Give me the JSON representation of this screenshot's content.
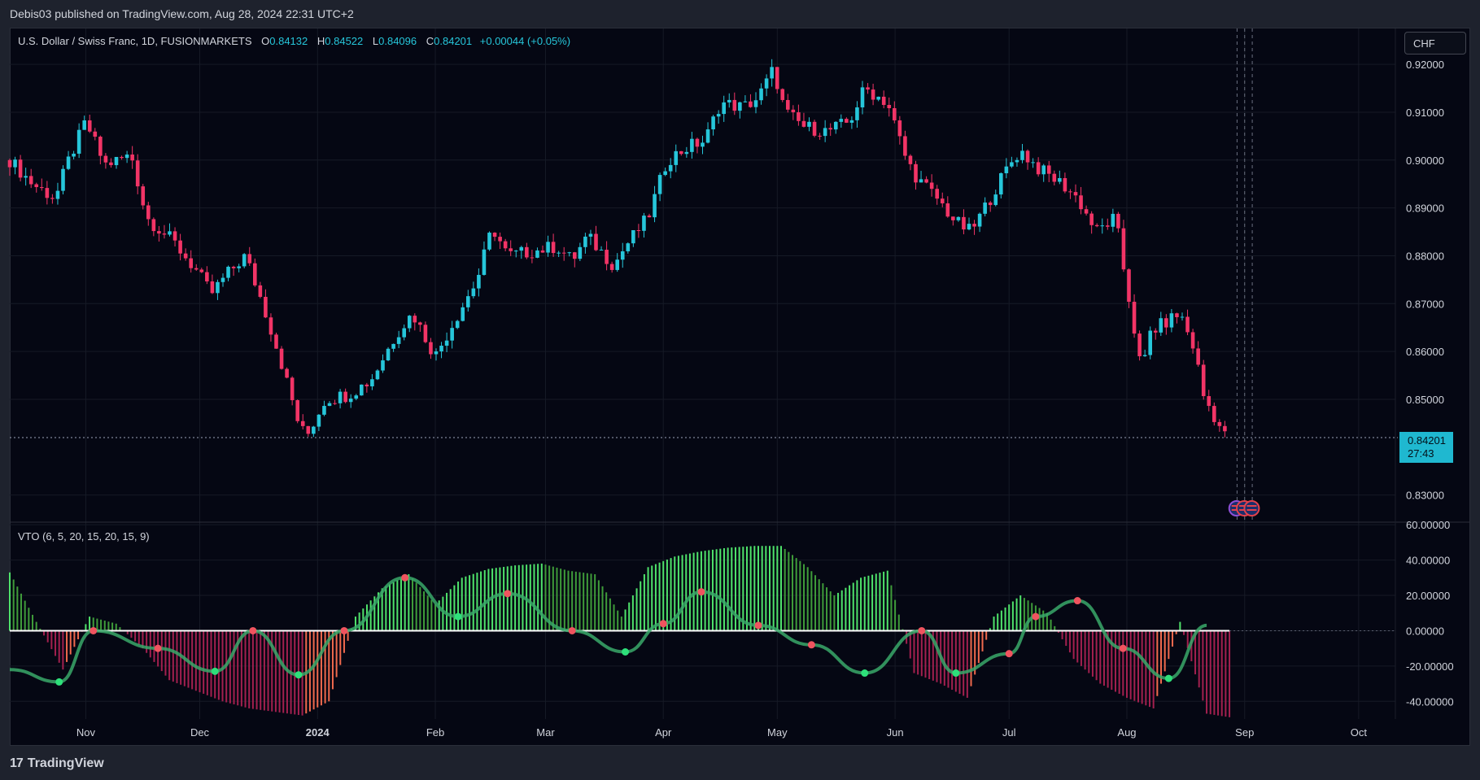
{
  "header": {
    "publish_line": "Debis03 published on TradingView.com, Aug 28, 2024 22:31 UTC+2"
  },
  "symbol": {
    "title": "U.S. Dollar / Swiss Franc, 1D, FUSIONMARKETS",
    "o_label": "O",
    "o_value": "0.84132",
    "h_label": "H",
    "h_value": "0.84522",
    "l_label": "L",
    "l_value": "0.84096",
    "c_label": "C",
    "c_value": "0.84201",
    "change": "+0.00044 (+0.05%)"
  },
  "currency_button": "CHF",
  "last_price": {
    "price": "0.84201",
    "countdown": "27:43"
  },
  "indicator": {
    "label": "VTO (6, 5, 20, 15, 20, 15, 9)"
  },
  "footer": {
    "brand": "TradingView",
    "logo": "17"
  },
  "colors": {
    "up": "#26c6da",
    "down": "#f23466",
    "hist_green_bright": "#4fe36b",
    "hist_green_dark": "#3f9c3a",
    "hist_red_bright": "#f0694d",
    "hist_red_dark": "#a3204f",
    "signal_line": "#3aa86a",
    "zero_line": "#ffffff"
  },
  "chart_data": [
    {
      "type": "candlestick",
      "title": "U.S. Dollar / Swiss Franc, 1D, FUSIONMARKETS",
      "x_tick_labels": [
        "Nov",
        "Dec",
        "2024",
        "Feb",
        "Mar",
        "Apr",
        "May",
        "Jun",
        "Jul",
        "Aug",
        "Sep",
        "Oct"
      ],
      "y_tick_labels": [
        "0.92000",
        "0.91000",
        "0.90000",
        "0.89000",
        "0.88000",
        "0.87000",
        "0.86000",
        "0.85000",
        "0.83000"
      ],
      "ylim": [
        0.8245,
        0.9275
      ],
      "last_price": 0.84201,
      "close_path": [
        [
          "2023-10-12",
          0.9
        ],
        [
          "2023-10-18",
          0.895
        ],
        [
          "2023-10-24",
          0.892
        ],
        [
          "2023-10-27",
          0.899
        ],
        [
          "2023-11-01",
          0.908
        ],
        [
          "2023-11-06",
          0.899
        ],
        [
          "2023-11-13",
          0.901
        ],
        [
          "2023-11-17",
          0.888
        ],
        [
          "2023-11-24",
          0.883
        ],
        [
          "2023-11-30",
          0.877
        ],
        [
          "2023-12-04",
          0.872
        ],
        [
          "2023-12-08",
          0.876
        ],
        [
          "2023-12-13",
          0.88
        ],
        [
          "2023-12-18",
          0.869
        ],
        [
          "2023-12-22",
          0.859
        ],
        [
          "2023-12-27",
          0.845
        ],
        [
          "2023-12-29",
          0.842
        ],
        [
          "2024-01-03",
          0.85
        ],
        [
          "2024-01-09",
          0.851
        ],
        [
          "2024-01-15",
          0.854
        ],
        [
          "2024-01-22",
          0.864
        ],
        [
          "2024-01-26",
          0.868
        ],
        [
          "2024-02-01",
          0.859
        ],
        [
          "2024-02-05",
          0.865
        ],
        [
          "2024-02-12",
          0.875
        ],
        [
          "2024-02-16",
          0.886
        ],
        [
          "2024-02-20",
          0.88
        ],
        [
          "2024-02-27",
          0.881
        ],
        [
          "2024-03-04",
          0.882
        ],
        [
          "2024-03-08",
          0.879
        ],
        [
          "2024-03-12",
          0.884
        ],
        [
          "2024-03-19",
          0.878
        ],
        [
          "2024-03-22",
          0.882
        ],
        [
          "2024-03-28",
          0.888
        ],
        [
          "2024-04-02",
          0.9
        ],
        [
          "2024-04-08",
          0.903
        ],
        [
          "2024-04-12",
          0.904
        ],
        [
          "2024-04-16",
          0.912
        ],
        [
          "2024-04-22",
          0.911
        ],
        [
          "2024-04-26",
          0.913
        ],
        [
          "2024-04-30",
          0.919
        ],
        [
          "2024-05-03",
          0.91
        ],
        [
          "2024-05-08",
          0.907
        ],
        [
          "2024-05-14",
          0.906
        ],
        [
          "2024-05-20",
          0.908
        ],
        [
          "2024-05-24",
          0.915
        ],
        [
          "2024-05-30",
          0.912
        ],
        [
          "2024-06-04",
          0.9
        ],
        [
          "2024-06-07",
          0.896
        ],
        [
          "2024-06-12",
          0.892
        ],
        [
          "2024-06-17",
          0.887
        ],
        [
          "2024-06-21",
          0.885
        ],
        [
          "2024-06-26",
          0.892
        ],
        [
          "2024-07-01",
          0.899
        ],
        [
          "2024-07-04",
          0.902
        ],
        [
          "2024-07-09",
          0.898
        ],
        [
          "2024-07-15",
          0.895
        ],
        [
          "2024-07-19",
          0.892
        ],
        [
          "2024-07-24",
          0.885
        ],
        [
          "2024-07-29",
          0.888
        ],
        [
          "2024-07-31",
          0.878
        ],
        [
          "2024-08-02",
          0.869
        ],
        [
          "2024-08-05",
          0.855
        ],
        [
          "2024-08-07",
          0.864
        ],
        [
          "2024-08-09",
          0.865
        ],
        [
          "2024-08-13",
          0.867
        ],
        [
          "2024-08-15",
          0.868
        ],
        [
          "2024-08-19",
          0.86
        ],
        [
          "2024-08-21",
          0.851
        ],
        [
          "2024-08-23",
          0.848
        ],
        [
          "2024-08-27",
          0.842
        ],
        [
          "2024-08-28",
          0.84201
        ]
      ]
    },
    {
      "type": "histogram",
      "title": "VTO (6, 5, 20, 15, 20, 15, 9)",
      "y_tick_labels": [
        "60.00000",
        "40.00000",
        "20.00000",
        "0.00000",
        "-20.00000",
        "-40.00000"
      ],
      "ylim": [
        -50,
        61
      ],
      "histogram_envelope": [
        [
          "2023-10-12",
          33
        ],
        [
          "2023-10-19",
          5
        ],
        [
          "2023-10-26",
          -22
        ],
        [
          "2023-11-02",
          8
        ],
        [
          "2023-11-09",
          4
        ],
        [
          "2023-11-16",
          -10
        ],
        [
          "2023-11-23",
          -28
        ],
        [
          "2023-11-30",
          -34
        ],
        [
          "2023-12-07",
          -40
        ],
        [
          "2023-12-14",
          -44
        ],
        [
          "2023-12-21",
          -46
        ],
        [
          "2023-12-28",
          -48
        ],
        [
          "2024-01-04",
          -40
        ],
        [
          "2024-01-11",
          8
        ],
        [
          "2024-01-18",
          24
        ],
        [
          "2024-01-25",
          32
        ],
        [
          "2024-02-01",
          15
        ],
        [
          "2024-02-08",
          30
        ],
        [
          "2024-02-15",
          35
        ],
        [
          "2024-02-22",
          37
        ],
        [
          "2024-02-29",
          38
        ],
        [
          "2024-03-07",
          34
        ],
        [
          "2024-03-14",
          32
        ],
        [
          "2024-03-21",
          8
        ],
        [
          "2024-03-28",
          36
        ],
        [
          "2024-04-04",
          42
        ],
        [
          "2024-04-11",
          45
        ],
        [
          "2024-04-18",
          47
        ],
        [
          "2024-04-25",
          48
        ],
        [
          "2024-05-02",
          48
        ],
        [
          "2024-05-09",
          36
        ],
        [
          "2024-05-16",
          20
        ],
        [
          "2024-05-23",
          30
        ],
        [
          "2024-05-30",
          34
        ],
        [
          "2024-06-06",
          -24
        ],
        [
          "2024-06-13",
          -30
        ],
        [
          "2024-06-20",
          -38
        ],
        [
          "2024-06-27",
          8
        ],
        [
          "2024-07-04",
          20
        ],
        [
          "2024-07-11",
          10
        ],
        [
          "2024-07-18",
          -16
        ],
        [
          "2024-07-25",
          -30
        ],
        [
          "2024-08-01",
          -38
        ],
        [
          "2024-08-08",
          -44
        ],
        [
          "2024-08-15",
          5
        ],
        [
          "2024-08-22",
          -47
        ],
        [
          "2024-08-28",
          -49
        ]
      ],
      "signal_line": [
        [
          "2023-10-12",
          -22
        ],
        [
          "2023-10-25",
          -29
        ],
        [
          "2023-11-03",
          0
        ],
        [
          "2023-11-20",
          -10
        ],
        [
          "2023-12-05",
          -23
        ],
        [
          "2023-12-15",
          0
        ],
        [
          "2023-12-27",
          -25
        ],
        [
          "2024-01-08",
          0
        ],
        [
          "2024-01-24",
          30
        ],
        [
          "2024-02-07",
          8
        ],
        [
          "2024-02-20",
          21
        ],
        [
          "2024-03-08",
          0
        ],
        [
          "2024-03-22",
          -12
        ],
        [
          "2024-04-01",
          4
        ],
        [
          "2024-04-11",
          22
        ],
        [
          "2024-04-26",
          3
        ],
        [
          "2024-05-10",
          -8
        ],
        [
          "2024-05-24",
          -24
        ],
        [
          "2024-06-08",
          0
        ],
        [
          "2024-06-17",
          -24
        ],
        [
          "2024-07-01",
          -13
        ],
        [
          "2024-07-08",
          8
        ],
        [
          "2024-07-19",
          17
        ],
        [
          "2024-07-31",
          -10
        ],
        [
          "2024-08-12",
          -27
        ],
        [
          "2024-08-22",
          3
        ]
      ]
    }
  ]
}
